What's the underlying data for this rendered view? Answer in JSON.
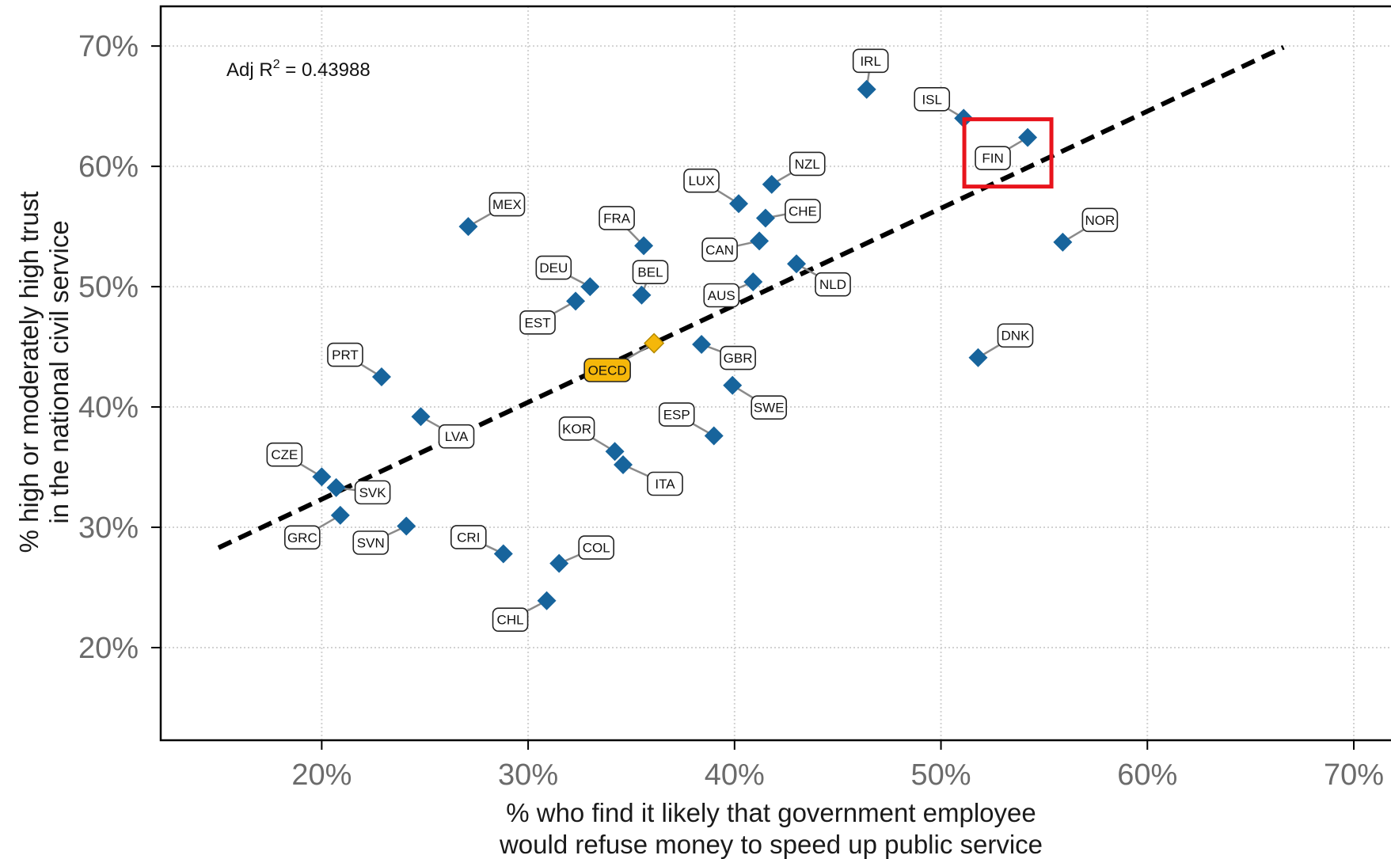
{
  "chart_data": {
    "type": "scatter",
    "xlabel": [
      "% who find it likely that government employee",
      "would refuse money to speed up public service"
    ],
    "ylabel": [
      "% high or moderately high trust",
      "in the national civil service"
    ],
    "xlim": [
      12.2,
      72.8
    ],
    "ylim": [
      12.3,
      73.3
    ],
    "x_ticks": [
      20,
      30,
      40,
      50,
      60,
      70
    ],
    "y_ticks": [
      20,
      30,
      40,
      50,
      60,
      70
    ],
    "x_tick_labels": [
      "20%",
      "30%",
      "40%",
      "50%",
      "60%",
      "70%"
    ],
    "y_tick_labels": [
      "20%",
      "30%",
      "40%",
      "50%",
      "60%",
      "70%"
    ],
    "grid": true,
    "annotation": {
      "prefix": "Adj R",
      "sup": "2",
      "suffix": " = 0.43988"
    },
    "fit_line": {
      "x": [
        15,
        66.6
      ],
      "y": [
        28.3,
        69.9
      ]
    },
    "colors": {
      "point": "#17649c",
      "highlight": "#f5b70a",
      "fit_line": "#000000",
      "callout": "#e8141c"
    },
    "highlight_box_label": "FIN",
    "points": [
      {
        "label": "IRL",
        "x": 46.4,
        "y": 66.4
      },
      {
        "label": "ISL",
        "x": 51.1,
        "y": 64.0
      },
      {
        "label": "FIN",
        "x": 54.2,
        "y": 62.4
      },
      {
        "label": "NZL",
        "x": 41.8,
        "y": 58.5
      },
      {
        "label": "LUX",
        "x": 40.2,
        "y": 56.9
      },
      {
        "label": "CHE",
        "x": 41.5,
        "y": 55.7
      },
      {
        "label": "MEX",
        "x": 27.1,
        "y": 55.0
      },
      {
        "label": "FRA",
        "x": 35.6,
        "y": 53.4
      },
      {
        "label": "CAN",
        "x": 41.2,
        "y": 53.8
      },
      {
        "label": "NOR",
        "x": 55.9,
        "y": 53.7
      },
      {
        "label": "NLD",
        "x": 43.0,
        "y": 51.9
      },
      {
        "label": "AUS",
        "x": 40.9,
        "y": 50.4
      },
      {
        "label": "DEU",
        "x": 33.0,
        "y": 50.0
      },
      {
        "label": "EST",
        "x": 32.3,
        "y": 48.8
      },
      {
        "label": "BEL",
        "x": 35.5,
        "y": 49.3
      },
      {
        "label": "OECD",
        "x": 36.1,
        "y": 45.3,
        "highlight": true
      },
      {
        "label": "GBR",
        "x": 38.4,
        "y": 45.2
      },
      {
        "label": "DNK",
        "x": 51.8,
        "y": 44.1
      },
      {
        "label": "PRT",
        "x": 22.9,
        "y": 42.5
      },
      {
        "label": "SWE",
        "x": 39.9,
        "y": 41.8
      },
      {
        "label": "LVA",
        "x": 24.8,
        "y": 39.2
      },
      {
        "label": "ESP",
        "x": 39.0,
        "y": 37.6
      },
      {
        "label": "KOR",
        "x": 34.2,
        "y": 36.3
      },
      {
        "label": "ITA",
        "x": 34.6,
        "y": 35.2
      },
      {
        "label": "CZE",
        "x": 20.0,
        "y": 34.2
      },
      {
        "label": "SVK",
        "x": 20.7,
        "y": 33.3
      },
      {
        "label": "GRC",
        "x": 20.9,
        "y": 31.0
      },
      {
        "label": "SVN",
        "x": 24.1,
        "y": 30.1
      },
      {
        "label": "CRI",
        "x": 28.8,
        "y": 27.8
      },
      {
        "label": "COL",
        "x": 31.5,
        "y": 27.0
      },
      {
        "label": "CHL",
        "x": 30.9,
        "y": 23.9
      }
    ]
  }
}
